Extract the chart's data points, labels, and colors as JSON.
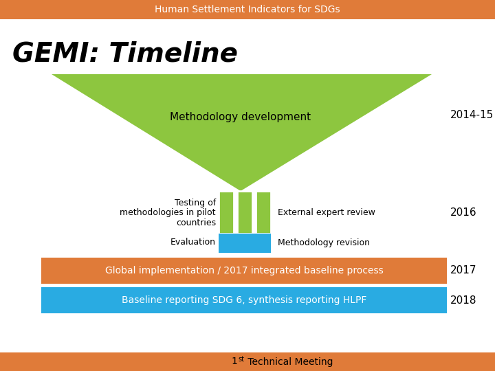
{
  "title_bar_text": "Human Settlement Indicators for SDGs",
  "title_bar_color": "#E07B39",
  "title_bar_text_color": "#FFFFFF",
  "main_title": "GEMI: Timeline",
  "main_title_color": "#000000",
  "background_color": "#FFFFFF",
  "triangle_color": "#8DC63F",
  "triangle_text": "Methodology development",
  "triangle_text_color": "#000000",
  "year_2014": "2014-15",
  "year_2016": "2016",
  "year_2017": "2017",
  "year_2018": "2018",
  "year_color": "#000000",
  "green_bars_color": "#8DC63F",
  "blue_bar_color": "#29ABE2",
  "left_text_line1": "Testing of",
  "left_text_line2": "methodologies in pilot",
  "left_text_line3": "countries",
  "left_text_line4": "Evaluation",
  "right_text_top": "External expert review",
  "right_text_bottom": "Methodology revision",
  "row2017_color": "#E07B39",
  "row2017_text": "Global implementation / 2017 integrated baseline process",
  "row2017_text_color": "#FFFFFF",
  "row2018_color": "#29ABE2",
  "row2018_text": "Baseline reporting SDG 6, synthesis reporting HLPF",
  "row2018_text_color": "#FFFFFF",
  "footer_color": "#E07B39",
  "footer_text_color": "#000000"
}
